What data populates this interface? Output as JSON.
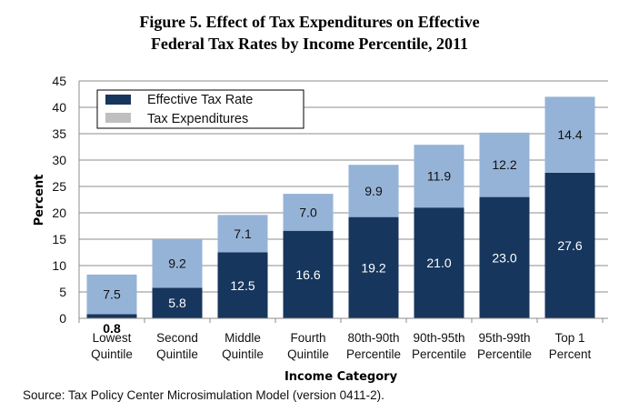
{
  "chart_data": {
    "type": "bar",
    "stacked": true,
    "title": "Figure 5. Effect of Tax Expenditures on Effective Federal Tax Rates by Income Percentile, 2011",
    "title_lines": [
      "Figure 5. Effect of Tax Expenditures on Effective",
      "Federal Tax Rates by Income Percentile, 2011"
    ],
    "xlabel": "Income Category",
    "ylabel": "Percent",
    "ylim": [
      0,
      45
    ],
    "yticks": [
      0,
      5,
      10,
      15,
      20,
      25,
      30,
      35,
      40,
      45
    ],
    "grid": true,
    "legend_position": "top-left",
    "categories": [
      [
        "Lowest",
        "Quintile"
      ],
      [
        "Second",
        "Quintile"
      ],
      [
        "Middle",
        "Quintile"
      ],
      [
        "Fourth",
        "Quintile"
      ],
      [
        "80th-90th",
        "Percentile"
      ],
      [
        "90th-95th",
        "Percentile"
      ],
      [
        "95th-99th",
        "Percentile"
      ],
      [
        "Top 1",
        "Percent"
      ]
    ],
    "series": [
      {
        "name": "Effective Tax Rate",
        "color": "#17365d",
        "label_color": "#ffffff",
        "values": [
          0.8,
          5.8,
          12.5,
          16.6,
          19.2,
          21.0,
          23.0,
          27.6
        ]
      },
      {
        "name": "Tax Expenditures",
        "color": "#95b3d7",
        "legend_color": "#bfbfbf",
        "label_color": "#111111",
        "values": [
          7.5,
          9.2,
          7.1,
          7.0,
          9.9,
          11.9,
          12.2,
          14.4
        ]
      }
    ],
    "source": "Source: Tax Policy Center Microsimulation Model (version 0411-2)."
  }
}
